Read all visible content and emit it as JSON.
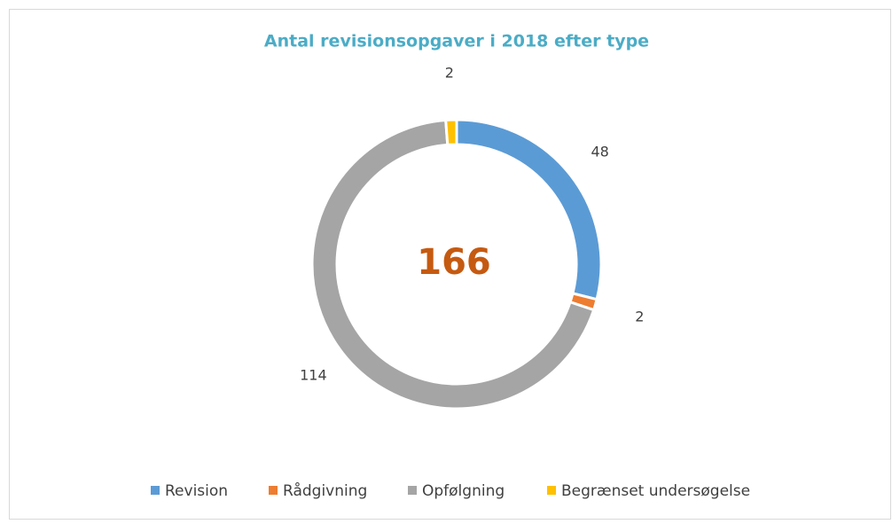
{
  "chart_data": {
    "type": "donut",
    "title": "Antal revisionsopgaver i 2018 efter type",
    "categories": [
      "Revision",
      "Rådgivning",
      "Opfølgning",
      "Begrænset undersøgelse"
    ],
    "values": [
      48,
      2,
      114,
      2
    ],
    "colors": [
      "#5b9bd5",
      "#ed7d31",
      "#a5a5a5",
      "#ffc000"
    ],
    "total": 166,
    "legend": "bottom"
  }
}
